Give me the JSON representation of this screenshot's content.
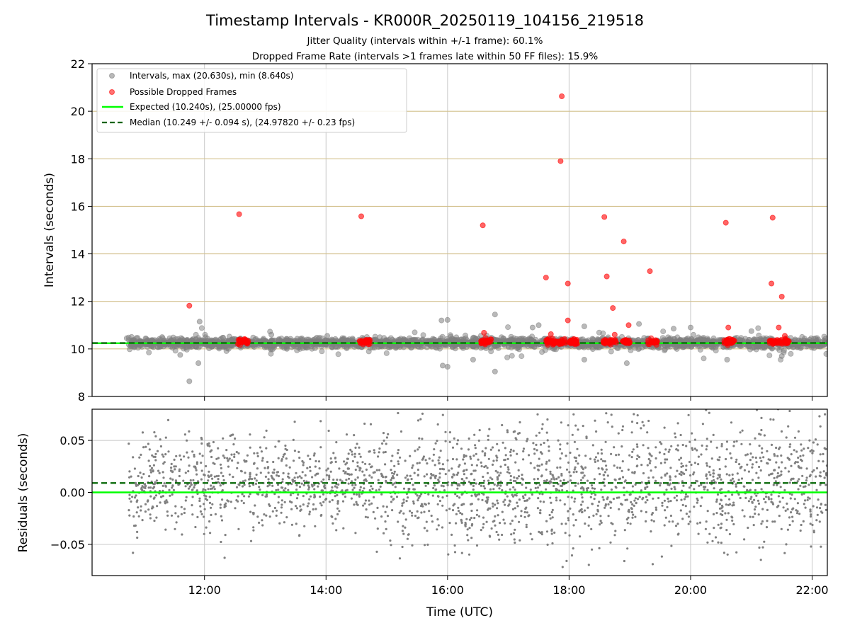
{
  "figure": {
    "title": "Timestamp Intervals - KR000R_20250119_104156_219518",
    "subtitle_1": "Jitter Quality (intervals within +/-1 frame): 60.1%",
    "subtitle_2": "Dropped Frame Rate (intervals >1 frames late within 50 FF files): 15.9%"
  },
  "chart_data": [
    {
      "type": "scatter",
      "panel": "top",
      "xlabel": "",
      "ylabel": "Intervals (seconds)",
      "x_unit": "hours UTC",
      "xlim": [
        10.15,
        22.25
      ],
      "ylim": [
        8,
        22
      ],
      "yticks": [
        8,
        10,
        12,
        14,
        16,
        18,
        20,
        22
      ],
      "xticks": [
        12,
        14,
        16,
        18,
        20,
        22
      ],
      "xtick_labels": [
        "12:00",
        "14:00",
        "16:00",
        "18:00",
        "20:00",
        "22:00"
      ],
      "grid": "vertical lines at x ticks; horizontal lines at y ticks (tan)",
      "legend_position": "upper-left",
      "legend": [
        "Intervals, max (20.630s), min (8.640s)",
        "Possible Dropped Frames",
        "Expected (10.240s), (25.00000 fps)",
        "Median (10.249 +/- 0.094 s), (24.97820 +/- 0.23 fps)"
      ],
      "expected_interval": 10.24,
      "median_interval": 10.249,
      "intervals_series": {
        "x_range": [
          10.75,
          22.25
        ],
        "typical_center": 10.25,
        "typical_spread": 0.1,
        "max": 20.63,
        "min": 8.64,
        "notable_points": [
          [
            10.72,
            10.45
          ],
          [
            11.75,
            8.64
          ],
          [
            11.92,
            11.15
          ],
          [
            11.9,
            9.4
          ],
          [
            11.6,
            9.75
          ],
          [
            13.1,
            10.6
          ],
          [
            14.02,
            10.55
          ],
          [
            15.9,
            11.2
          ],
          [
            16.0,
            11.22
          ],
          [
            15.92,
            9.3
          ],
          [
            16.0,
            9.25
          ],
          [
            16.78,
            11.45
          ],
          [
            16.78,
            9.05
          ],
          [
            16.42,
            9.55
          ],
          [
            17.4,
            10.9
          ],
          [
            17.5,
            11.0
          ],
          [
            18.25,
            10.95
          ],
          [
            18.25,
            9.55
          ],
          [
            18.95,
            9.4
          ],
          [
            19.15,
            11.05
          ],
          [
            19.72,
            10.85
          ],
          [
            20.0,
            10.9
          ],
          [
            20.6,
            9.55
          ],
          [
            21.0,
            10.75
          ],
          [
            21.5,
            9.7
          ]
        ]
      },
      "dropped_frames": {
        "color": "#ff0000",
        "isolated_points": [
          [
            11.75,
            11.82
          ],
          [
            12.57,
            15.67
          ],
          [
            14.58,
            15.58
          ],
          [
            16.58,
            15.2
          ],
          [
            16.6,
            10.68
          ],
          [
            17.62,
            13.0
          ],
          [
            17.88,
            20.63
          ],
          [
            17.86,
            17.9
          ],
          [
            17.98,
            12.75
          ],
          [
            17.98,
            11.2
          ],
          [
            18.58,
            15.55
          ],
          [
            18.62,
            13.05
          ],
          [
            18.72,
            11.72
          ],
          [
            18.9,
            14.52
          ],
          [
            18.98,
            11.0
          ],
          [
            19.33,
            13.27
          ],
          [
            20.58,
            15.31
          ],
          [
            21.35,
            15.52
          ],
          [
            21.33,
            12.75
          ],
          [
            21.5,
            12.2
          ],
          [
            21.45,
            10.9
          ],
          [
            17.7,
            10.62
          ],
          [
            18.75,
            10.6
          ],
          [
            20.62,
            10.9
          ],
          [
            21.55,
            10.55
          ]
        ],
        "clusters": [
          [
            12.55,
            12.72
          ],
          [
            14.55,
            14.72
          ],
          [
            16.55,
            16.72
          ],
          [
            17.62,
            17.95
          ],
          [
            18.0,
            18.15
          ],
          [
            18.55,
            18.78
          ],
          [
            18.88,
            19.0
          ],
          [
            19.3,
            19.45
          ],
          [
            20.55,
            20.72
          ],
          [
            21.3,
            21.62
          ]
        ],
        "cluster_center": 10.3
      }
    },
    {
      "type": "scatter",
      "panel": "bottom",
      "xlabel": "Time (UTC)",
      "ylabel": "Residuals (seconds)",
      "xlim": [
        10.15,
        22.25
      ],
      "ylim": [
        -0.08,
        0.08
      ],
      "yticks": [
        -0.05,
        0.0,
        0.05
      ],
      "ytick_labels": [
        "−0.05",
        "0.00",
        "0.05"
      ],
      "xticks": [
        12,
        14,
        16,
        18,
        20,
        22
      ],
      "xtick_labels": [
        "12:00",
        "14:00",
        "16:00",
        "18:00",
        "20:00",
        "22:00"
      ],
      "grid": "both axes",
      "expected_residual": 0.0,
      "median_residual": 0.009,
      "residuals_series": {
        "x_range": [
          10.75,
          22.25
        ],
        "approx_std": 0.03,
        "point_color": "#808080"
      }
    }
  ],
  "colors": {
    "expected_line": "#00ff00",
    "median_line": "#006400",
    "intervals_points": "#808080",
    "dropped_points": "#ff0000",
    "hgrid_top": "#d2c08c",
    "grid": "#c8c8c8"
  }
}
